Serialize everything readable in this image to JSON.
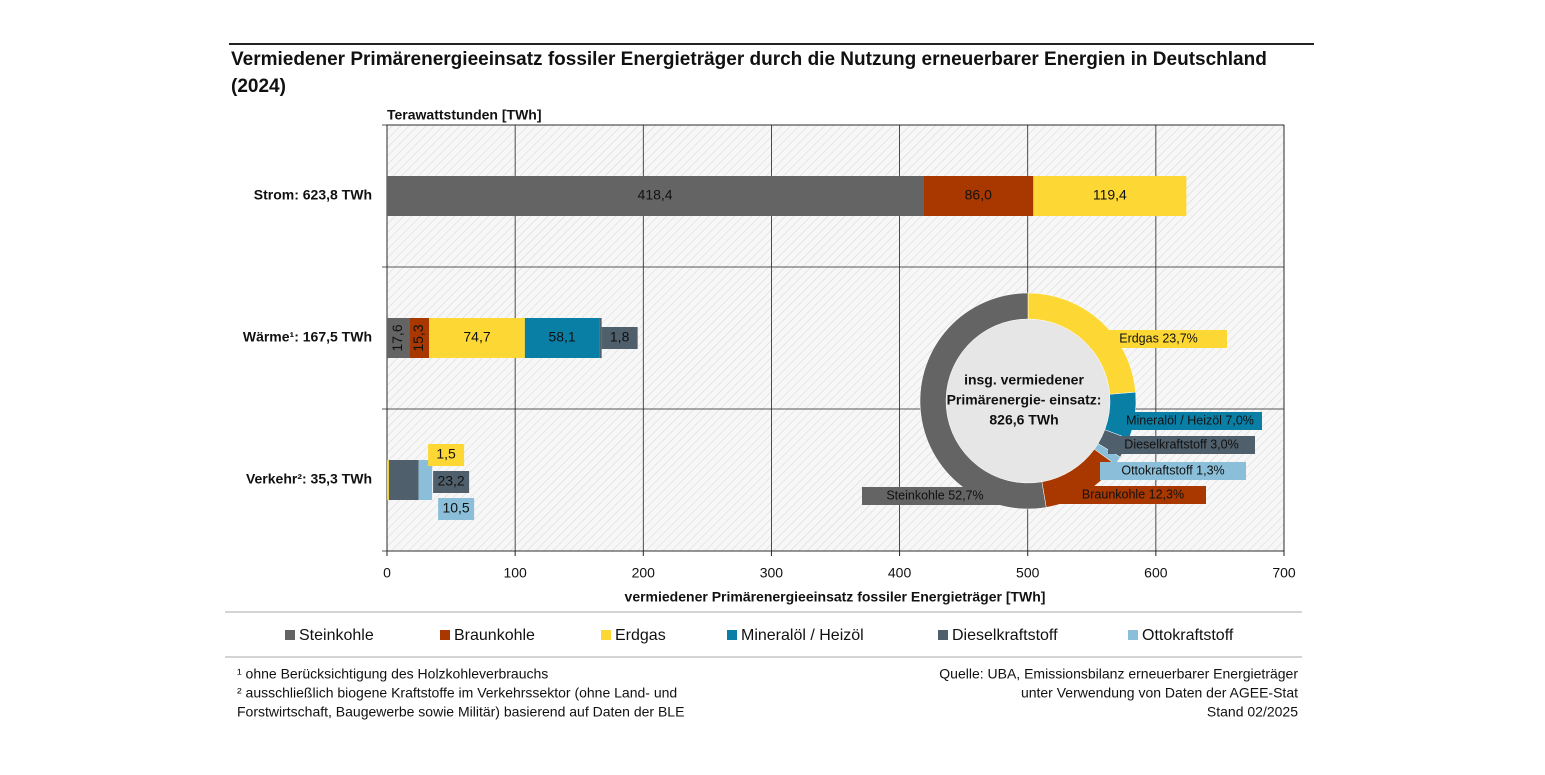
{
  "chart_data": [
    {
      "type": "stacked-bar-horizontal",
      "title": "Vermiedener Primärenergieeinsatz fossiler Energieträger durch die Nutzung erneuerbarer Energien in Deutschland (2024)",
      "y_label": "Terawattstunden [TWh]",
      "x_label": "vermiedener Primärenergieeinsatz fossiler Energieträger [TWh]",
      "categories": [
        "Strom: 623,8 TWh",
        "Wärme¹: 167,5 TWh",
        "Verkehr²: 35,3 TWh"
      ],
      "series": [
        {
          "name": "Steinkohle",
          "color": "#646464",
          "values": [
            418.4,
            17.6,
            null
          ],
          "value_labels": [
            "418,4",
            "17,6",
            null
          ]
        },
        {
          "name": "Braunkohle",
          "color": "#a83800",
          "values": [
            86.0,
            15.3,
            null
          ],
          "value_labels": [
            "86,0",
            "15,3",
            null
          ]
        },
        {
          "name": "Erdgas",
          "color": "#fdd835",
          "values": [
            119.4,
            74.7,
            1.5
          ],
          "value_labels": [
            "119,4",
            "74,7",
            "1,5"
          ]
        },
        {
          "name": "Mineralöl / Heizöl",
          "color": "#0a7fa6",
          "values": [
            null,
            58.1,
            null
          ],
          "value_labels": [
            null,
            "58,1",
            null
          ]
        },
        {
          "name": "Dieselkraftstoff",
          "color": "#4f5f6b",
          "values": [
            null,
            1.8,
            23.2
          ],
          "value_labels": [
            null,
            "1,8",
            "23,2"
          ]
        },
        {
          "name": "Ottokraftstoff",
          "color": "#8bbfd9",
          "values": [
            null,
            null,
            10.5
          ],
          "value_labels": [
            null,
            null,
            "10,5"
          ]
        }
      ],
      "xlim": [
        0,
        700
      ],
      "xticks": [
        0,
        100,
        200,
        300,
        400,
        500,
        600,
        700
      ],
      "grid": true,
      "legend": "bottom"
    },
    {
      "type": "donut",
      "center_label": [
        "insg. vermiedener",
        "Primärenergie- einsatz:",
        "826,6 TWh"
      ],
      "values": [
        23.7,
        7.0,
        3.0,
        1.3,
        12.3,
        52.7
      ],
      "value_labels": [
        "Erdgas 23,7%",
        "Mineralöl / Heizöl 7,0%",
        "Dieselkraftstoff 3,0%",
        "Ottokraftstoff 1,3%",
        "Braunkohle 12,3%",
        "Steinkohle 52,7%"
      ],
      "colors": [
        "#fdd835",
        "#0a7fa6",
        "#4f5f6b",
        "#8bbfd9",
        "#a83800",
        "#646464"
      ]
    }
  ],
  "footnotes": [
    "¹  ohne Berücksichtigung des Holzkohleverbrauchs",
    "² ausschließlich biogene Kraftstoffe im Verkehrssektor (ohne Land- und",
    "Forstwirtschaft, Baugewerbe sowie Militär) basierend auf Daten der BLE"
  ],
  "source": [
    "Quelle: UBA, Emissionsbilanz erneuerbarer Energieträger",
    "unter Verwendung von Daten der AGEE-Stat",
    "Stand 02/2025"
  ]
}
